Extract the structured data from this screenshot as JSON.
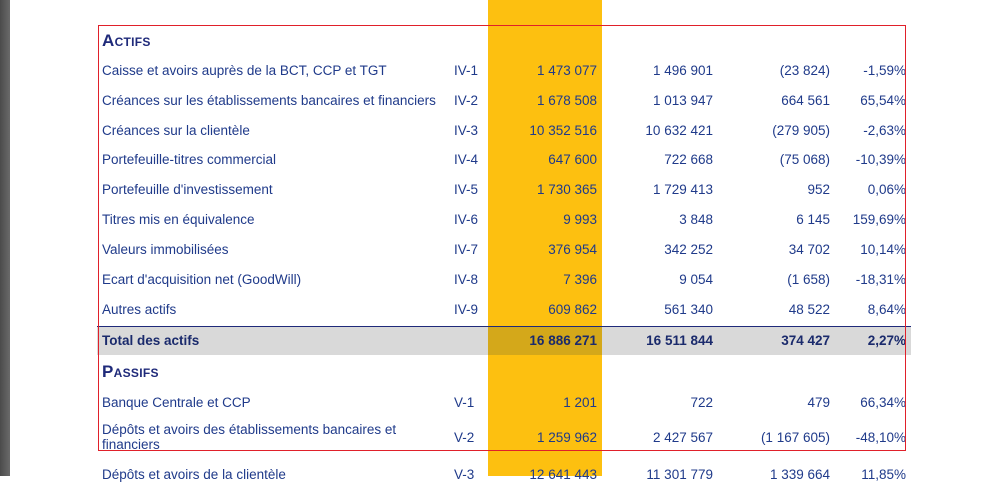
{
  "sections": {
    "actifs_title": "Actifs",
    "passifs_title": "Passifs"
  },
  "actifs": [
    {
      "label": "Caisse et avoirs auprès de la BCT, CCP et TGT",
      "note": "IV-1",
      "v1": "1 473 077",
      "v2": "1 496 901",
      "v3": "(23 824)",
      "v4": "-1,59%"
    },
    {
      "label": "Créances sur les établissements bancaires et financiers",
      "note": "IV-2",
      "v1": "1 678 508",
      "v2": "1 013 947",
      "v3": "664 561",
      "v4": "65,54%"
    },
    {
      "label": "Créances sur la clientèle",
      "note": "IV-3",
      "v1": "10 352 516",
      "v2": "10 632 421",
      "v3": "(279 905)",
      "v4": "-2,63%"
    },
    {
      "label": "Portefeuille-titres commercial",
      "note": "IV-4",
      "v1": "647 600",
      "v2": "722 668",
      "v3": "(75 068)",
      "v4": "-10,39%"
    },
    {
      "label": "Portefeuille d'investissement",
      "note": "IV-5",
      "v1": "1 730 365",
      "v2": "1 729 413",
      "v3": "952",
      "v4": "0,06%"
    },
    {
      "label": "Titres mis en équivalence",
      "note": "IV-6",
      "v1": "9 993",
      "v2": "3 848",
      "v3": "6 145",
      "v4": "159,69%"
    },
    {
      "label": "Valeurs immobilisées",
      "note": "IV-7",
      "v1": "376 954",
      "v2": "342 252",
      "v3": "34 702",
      "v4": "10,14%"
    },
    {
      "label": "Ecart d'acquisition net (GoodWill)",
      "note": "IV-8",
      "v1": "7 396",
      "v2": "9 054",
      "v3": "(1 658)",
      "v4": "-18,31%"
    },
    {
      "label": "Autres actifs",
      "note": "IV-9",
      "v1": "609 862",
      "v2": "561 340",
      "v3": "48 522",
      "v4": "8,64%"
    }
  ],
  "total_actifs": {
    "label": "Total des actifs",
    "v1": "16 886 271",
    "v2": "16 511 844",
    "v3": "374 427",
    "v4": "2,27%"
  },
  "passifs": [
    {
      "label": "Banque Centrale et CCP",
      "note": "V-1",
      "v1": "1 201",
      "v2": "722",
      "v3": "479",
      "v4": "66,34%"
    },
    {
      "label": "Dépôts et avoirs des établissements bancaires et financiers",
      "note": "V-2",
      "v1": "1 259 962",
      "v2": "2 427 567",
      "v3": "(1 167 605)",
      "v4": "-48,10%"
    },
    {
      "label": "Dépôts et avoirs de la clientèle",
      "note": "V-3",
      "v1": "12 641 443",
      "v2": "11 301 779",
      "v3": "1 339 664",
      "v4": "11,85%"
    }
  ]
}
